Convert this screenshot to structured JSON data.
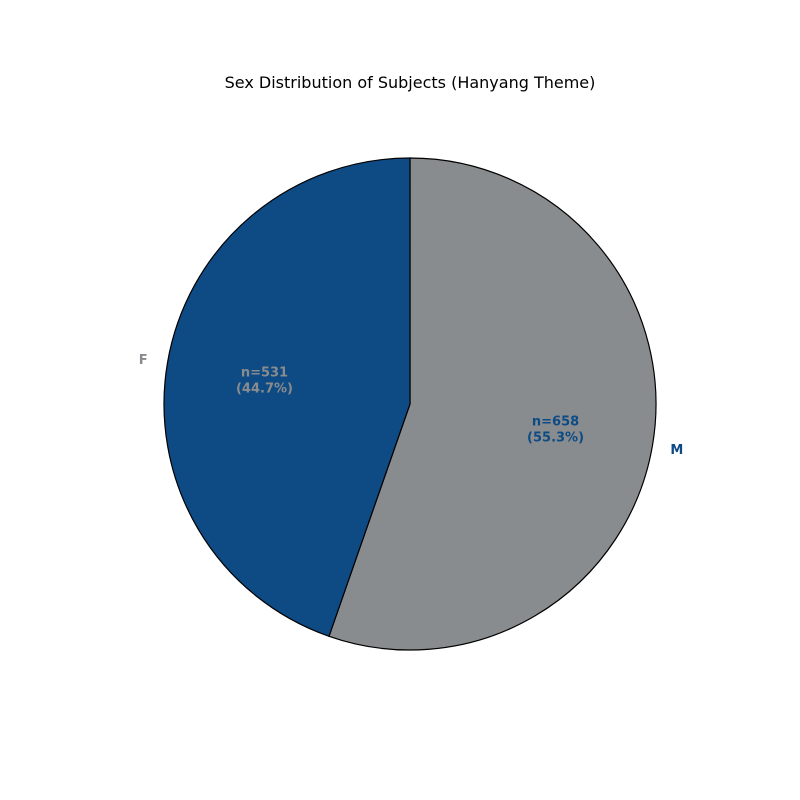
{
  "chart_data": {
    "type": "pie",
    "title": "Sex Distribution of Subjects (Hanyang Theme)",
    "start_angle_deg": 90,
    "direction": "clockwise",
    "colors": {
      "navy": "#0e4a84",
      "gray": "#898c8e",
      "edge": "#000000"
    },
    "slices": [
      {
        "label": "M",
        "value": 658,
        "percent": 55.3,
        "count_text": "n=658",
        "percent_text": "(55.3%)",
        "fill": "#898c8e",
        "text_color": "#0e4a84"
      },
      {
        "label": "F",
        "value": 531,
        "percent": 44.7,
        "count_text": "n=531",
        "percent_text": "(44.7%)",
        "fill": "#0e4a84",
        "text_color": "#898c8e"
      }
    ]
  }
}
